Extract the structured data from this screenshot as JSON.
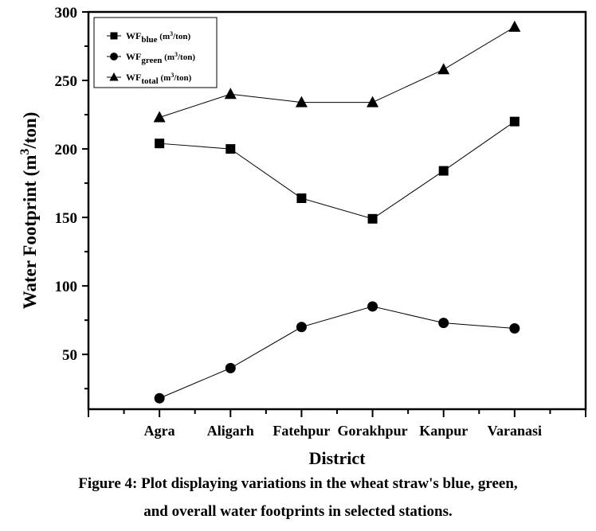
{
  "chart_data": {
    "type": "line",
    "xlabel": "District",
    "ylabel": "Water Footprint (m3/ton)",
    "ylabel_parts": {
      "main": "Water Footprint (m",
      "sup": "3",
      "tail": "/ton)"
    },
    "categories": [
      "Agra",
      "Aligarh",
      "Fatehpur",
      "Gorakhpur",
      "Kanpur",
      "Varanasi"
    ],
    "xlim": [
      0,
      7
    ],
    "ylim": [
      10,
      300
    ],
    "yticks": [
      50,
      100,
      150,
      200,
      250,
      300
    ],
    "grid": false,
    "legend_placement": "top-left",
    "series": [
      {
        "name": "WFblue (m3/ton)",
        "label": {
          "base": "WF",
          "sub": "blue",
          "unit": "(m",
          "sup": "3",
          "tail": "/ton)"
        },
        "marker": "square",
        "values": [
          204,
          200,
          164,
          149,
          184,
          220
        ]
      },
      {
        "name": "WFgreen (m3/ton)",
        "label": {
          "base": "WF",
          "sub": "green",
          "unit": "(m",
          "sup": "3",
          "tail": "/ton)"
        },
        "marker": "circle",
        "values": [
          18,
          40,
          70,
          85,
          73,
          69
        ]
      },
      {
        "name": "WFtotal (m3/ton)",
        "label": {
          "base": "WF",
          "sub": "total",
          "unit": "(m",
          "sup": "3",
          "tail": "/ton)"
        },
        "marker": "triangle",
        "values": [
          223,
          240,
          234,
          234,
          258,
          289
        ]
      }
    ]
  },
  "caption": {
    "line1": "Figure 4: Plot displaying variations in the wheat straw's blue, green,",
    "line2": "and overall water footprints in selected stations."
  }
}
